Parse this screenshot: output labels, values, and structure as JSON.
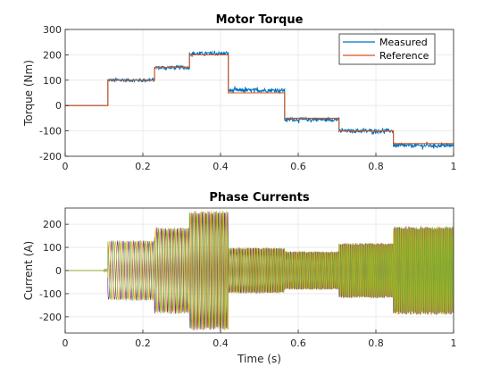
{
  "chart_data": [
    {
      "type": "line",
      "title": "Motor Torque",
      "xlabel": "",
      "ylabel": "Torque (Nm)",
      "xlim": [
        0,
        1
      ],
      "ylim": [
        -200,
        300
      ],
      "xticks": [
        "0",
        "0.2",
        "0.4",
        "0.6",
        "0.8",
        "1"
      ],
      "yticks": [
        "-200",
        "-100",
        "0",
        "100",
        "200",
        "300"
      ],
      "grid": true,
      "legend_position": "top-right",
      "series": [
        {
          "name": "Measured",
          "color": "#0072BD",
          "noise": 7,
          "x": [
            0,
            0.1,
            0.1,
            0.11,
            0.11,
            0.23,
            0.23,
            0.32,
            0.32,
            0.42,
            0.42,
            0.565,
            0.565,
            0.705,
            0.705,
            0.845,
            0.845,
            1.0
          ],
          "y": [
            0,
            0,
            0,
            0,
            100,
            100,
            150,
            150,
            205,
            205,
            60,
            60,
            -55,
            -55,
            -100,
            -100,
            -158,
            -158
          ]
        },
        {
          "name": "Reference",
          "color": "#D95319",
          "x": [
            0,
            0.11,
            0.11,
            0.23,
            0.23,
            0.32,
            0.32,
            0.42,
            0.42,
            0.565,
            0.565,
            0.705,
            0.705,
            0.845,
            0.845,
            1.0
          ],
          "y": [
            0,
            0,
            100,
            100,
            150,
            150,
            200,
            200,
            50,
            50,
            -50,
            -50,
            -100,
            -100,
            -150,
            -150
          ]
        }
      ]
    },
    {
      "type": "line",
      "title": "Phase Currents",
      "xlabel": "Time (s)",
      "ylabel": "Current (A)",
      "xlim": [
        0,
        1
      ],
      "ylim": [
        -270,
        270
      ],
      "xticks": [
        "0",
        "0.2",
        "0.4",
        "0.6",
        "0.8",
        "1"
      ],
      "yticks": [
        "-200",
        "-100",
        "0",
        "100",
        "200"
      ],
      "grid": true,
      "series": [
        {
          "color": "#7E2F8E"
        },
        {
          "color": "#EDB120"
        },
        {
          "color": "#77AC30"
        }
      ],
      "envelope": {
        "t": [
          0,
          0.1,
          0.11,
          0.23,
          0.32,
          0.42,
          0.565,
          0.705,
          0.845,
          1.0
        ],
        "amp": [
          0,
          5,
          125,
          180,
          250,
          95,
          80,
          115,
          185
        ]
      }
    }
  ]
}
